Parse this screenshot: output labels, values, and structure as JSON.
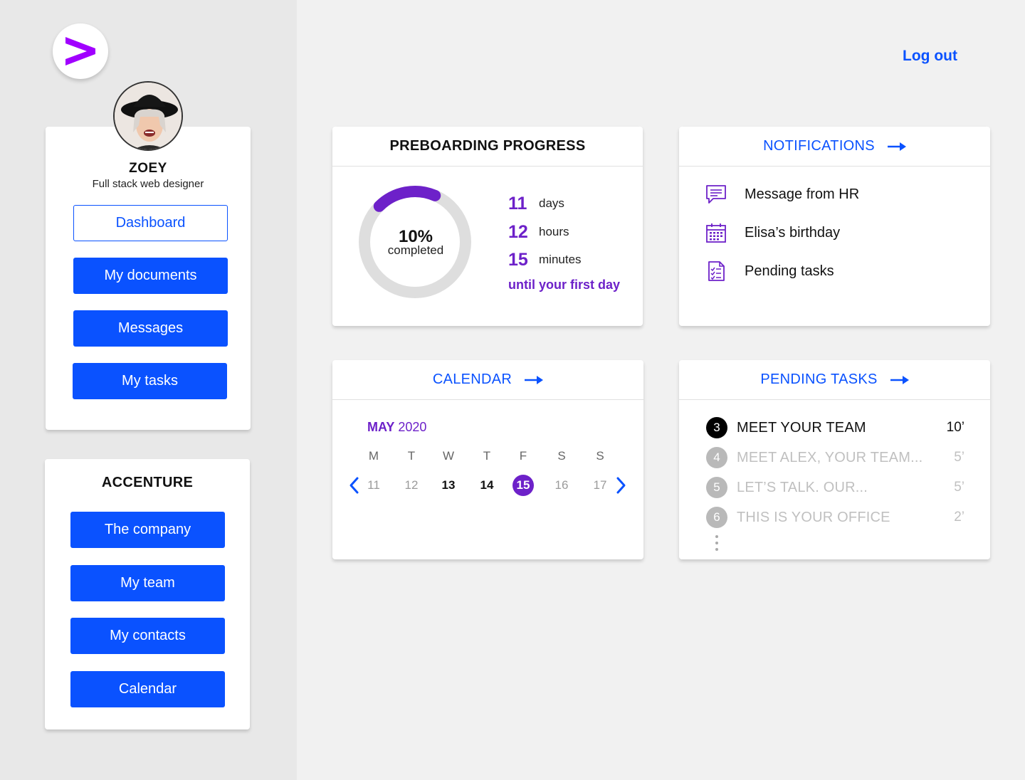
{
  "brand": {
    "accent": "#0a52ff",
    "purple": "#6d21c9"
  },
  "header": {
    "logout_label": "Log out"
  },
  "profile": {
    "name": "ZOEY",
    "role": "Full stack web designer",
    "nav": [
      {
        "label": "Dashboard",
        "active": true
      },
      {
        "label": "My documents"
      },
      {
        "label": "Messages"
      },
      {
        "label": "My tasks"
      }
    ]
  },
  "company": {
    "title": "ACCENTURE",
    "nav": [
      {
        "label": "The company"
      },
      {
        "label": "My team"
      },
      {
        "label": "My contacts"
      },
      {
        "label": "Calendar"
      }
    ]
  },
  "progress": {
    "title": "PREBOARDING PROGRESS",
    "percent_value": 0.1,
    "percent_label": "10%",
    "completed_label": "completed",
    "countdown": [
      {
        "value": "11",
        "unit": "days"
      },
      {
        "value": "12",
        "unit": "hours"
      },
      {
        "value": "15",
        "unit": "minutes"
      }
    ],
    "until_label": "until your first day"
  },
  "notifications": {
    "title": "NOTIFICATIONS",
    "items": [
      {
        "icon": "message-icon",
        "label": "Message from HR"
      },
      {
        "icon": "calendar-icon",
        "label": "Elisa’s birthday"
      },
      {
        "icon": "checklist-icon",
        "label": "Pending tasks"
      }
    ]
  },
  "calendar": {
    "title": "CALENDAR",
    "month": "MAY",
    "year": "2020",
    "weekdays": [
      "M",
      "T",
      "W",
      "T",
      "F",
      "S",
      "S"
    ],
    "days": [
      {
        "label": "11",
        "style": "muted"
      },
      {
        "label": "12",
        "style": "muted"
      },
      {
        "label": "13",
        "style": "bold"
      },
      {
        "label": "14",
        "style": "bold"
      },
      {
        "label": "15",
        "style": "selected"
      },
      {
        "label": "16",
        "style": "muted"
      },
      {
        "label": "17",
        "style": "muted"
      }
    ]
  },
  "pending_tasks": {
    "title": "PENDING TASKS",
    "items": [
      {
        "num": "3",
        "name": "MEET YOUR TEAM",
        "time": "10’",
        "active": true
      },
      {
        "num": "4",
        "name": "MEET ALEX, YOUR TEAM...",
        "time": "5’",
        "active": false
      },
      {
        "num": "5",
        "name": "LET’S TALK. OUR...",
        "time": "5’",
        "active": false
      },
      {
        "num": "6",
        "name": "THIS IS YOUR OFFICE",
        "time": "2’",
        "active": false
      }
    ]
  }
}
